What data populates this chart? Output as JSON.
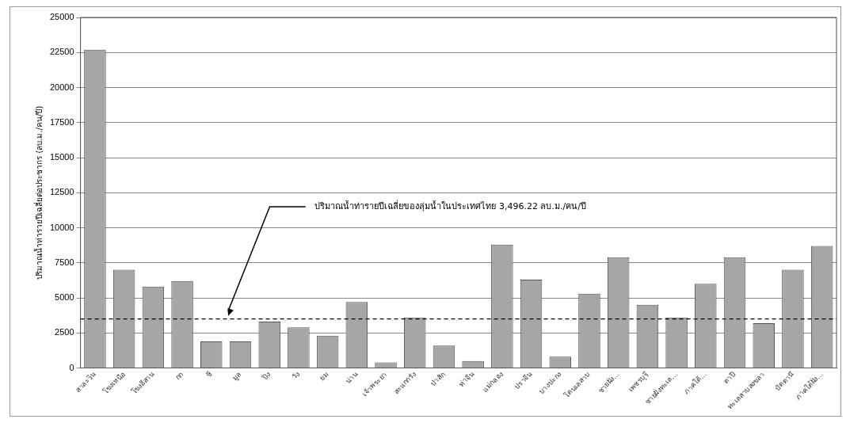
{
  "chart_data": {
    "type": "bar",
    "categories": [
      "สาละวิน",
      "โขงเหนือ",
      "โขงอีสาน",
      "กก",
      "ชี",
      "มูล",
      "ปิง",
      "วัง",
      "ยม",
      "น่าน",
      "เจ้าพระยา",
      "สะแกกรัง",
      "ป่าสัก",
      "ท่าจีน",
      "แม่กลอง",
      "ปราจีน",
      "บางปะกง",
      "โตนเลสาบ",
      "ชายฝั่ง...",
      "เพชรบุรี",
      "ชายฝั่งทะเล...",
      "ภาคใต้...",
      "ตาปี",
      "ทะเลสาบสงขลา",
      "ปัตตานี",
      "ภาคใต้ฝั่ง..."
    ],
    "values": [
      22700,
      7000,
      5800,
      6200,
      1900,
      1900,
      3300,
      2900,
      2300,
      4700,
      400,
      3600,
      1600,
      500,
      8800,
      6300,
      800,
      5300,
      7900,
      4500,
      3600,
      6000,
      7900,
      3200,
      7000,
      8700
    ],
    "color": "#a6a6a6",
    "ylabel": "ปริมาณน้ำท่ารายปีเฉลี่ยต่อประชากร (ลบ.ม./คน/ปี)",
    "ylim": [
      0,
      25000
    ],
    "yticks": [
      0,
      2500,
      5000,
      7500,
      10000,
      12500,
      15000,
      17500,
      20000,
      22500,
      25000
    ],
    "grid": "y",
    "ref_lines": [
      {
        "axis": "y",
        "value": 3496.22,
        "label": "ปริมาณน้ำท่ารายปีเฉลี่ยของลุ่มน้ำในประเทศไทย 3,496.22 ลบ.ม./คน/ปี",
        "color": "#000000",
        "line_style": "dashed"
      }
    ]
  }
}
